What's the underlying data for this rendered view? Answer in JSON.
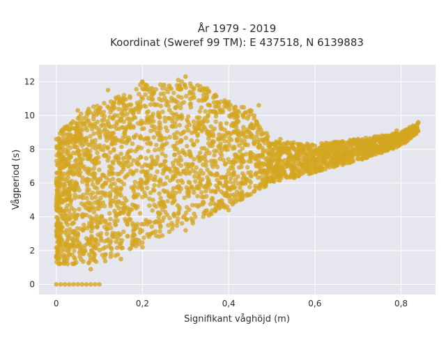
{
  "chart_data": {
    "type": "scatter",
    "title_line1": "År 1979 - 2019",
    "title_line2": "Koordinat (Sweref 99 TM): E 437518, N 6139883",
    "xlabel": "Signifikant våghöjd (m)",
    "ylabel": "Vågperiod (s)",
    "xlim": [
      -0.04,
      0.88
    ],
    "ylim": [
      -0.6,
      13
    ],
    "x_ticks": [
      0,
      0.2,
      0.4,
      0.6,
      0.8
    ],
    "x_tick_labels": [
      "0",
      "0,2",
      "0,4",
      "0,6",
      "0,8"
    ],
    "y_ticks": [
      0,
      2,
      4,
      6,
      8,
      10,
      12
    ],
    "y_tick_labels": [
      "0",
      "2",
      "4",
      "6",
      "8",
      "10",
      "12"
    ],
    "grid": true,
    "colors": {
      "marker": "#D4A520",
      "plot_background": "#E6E6EF",
      "grid": "#FFFFFF"
    },
    "lower_envelope": [
      [
        0.0,
        1.2
      ],
      [
        0.1,
        1.2
      ],
      [
        0.2,
        2.4
      ],
      [
        0.3,
        3.4
      ],
      [
        0.4,
        4.6
      ],
      [
        0.5,
        6.0
      ],
      [
        0.6,
        6.6
      ],
      [
        0.7,
        7.3
      ],
      [
        0.8,
        8.2
      ],
      [
        0.84,
        9.0
      ]
    ],
    "upper_envelope": [
      [
        0.0,
        8.5
      ],
      [
        0.02,
        9.5
      ],
      [
        0.08,
        10.5
      ],
      [
        0.15,
        11.2
      ],
      [
        0.2,
        12.0
      ],
      [
        0.25,
        11.8
      ],
      [
        0.3,
        12.3
      ],
      [
        0.35,
        11.5
      ],
      [
        0.4,
        10.8
      ],
      [
        0.45,
        10.4
      ],
      [
        0.5,
        8.5
      ],
      [
        0.6,
        8.3
      ],
      [
        0.7,
        8.6
      ],
      [
        0.8,
        9.0
      ],
      [
        0.84,
        9.6
      ]
    ],
    "points": [
      [
        0.0,
        0
      ],
      [
        0.01,
        0
      ],
      [
        0.02,
        0
      ],
      [
        0.03,
        0
      ],
      [
        0.04,
        0
      ],
      [
        0.05,
        0
      ],
      [
        0.06,
        0
      ],
      [
        0.07,
        0
      ],
      [
        0.08,
        0
      ],
      [
        0.09,
        0
      ],
      [
        0.1,
        0
      ],
      [
        0.0,
        1.6
      ],
      [
        0.01,
        2.8
      ],
      [
        0.02,
        5.5
      ],
      [
        0.01,
        4.2
      ],
      [
        0.84,
        9.6
      ],
      [
        0.82,
        9.3
      ],
      [
        0.79,
        9.1
      ],
      [
        0.77,
        8.8
      ],
      [
        0.75,
        8.5
      ],
      [
        0.72,
        8.2
      ],
      [
        0.7,
        8.0
      ],
      [
        0.67,
        7.8
      ],
      [
        0.64,
        7.5
      ],
      [
        0.62,
        7.2
      ],
      [
        0.6,
        7.0
      ],
      [
        0.58,
        6.9
      ],
      [
        0.55,
        6.6
      ],
      [
        0.52,
        6.4
      ],
      [
        0.5,
        6.2
      ],
      [
        0.5,
        8.3
      ],
      [
        0.55,
        8.1
      ],
      [
        0.6,
        8.2
      ],
      [
        0.65,
        8.4
      ],
      [
        0.7,
        8.6
      ],
      [
        0.75,
        8.7
      ],
      [
        0.78,
        8.9
      ],
      [
        0.81,
        9.0
      ],
      [
        0.08,
        0.9
      ],
      [
        0.15,
        1.5
      ],
      [
        0.2,
        2.2
      ],
      [
        0.3,
        3.2
      ],
      [
        0.4,
        4.4
      ],
      [
        0.0,
        8.6
      ],
      [
        0.02,
        9.3
      ],
      [
        0.05,
        10.3
      ],
      [
        0.12,
        11.5
      ],
      [
        0.2,
        12.0
      ],
      [
        0.25,
        11.8
      ],
      [
        0.3,
        12.3
      ],
      [
        0.35,
        11.6
      ],
      [
        0.4,
        10.8
      ],
      [
        0.47,
        10.6
      ],
      [
        0.52,
        8.6
      ]
    ]
  }
}
